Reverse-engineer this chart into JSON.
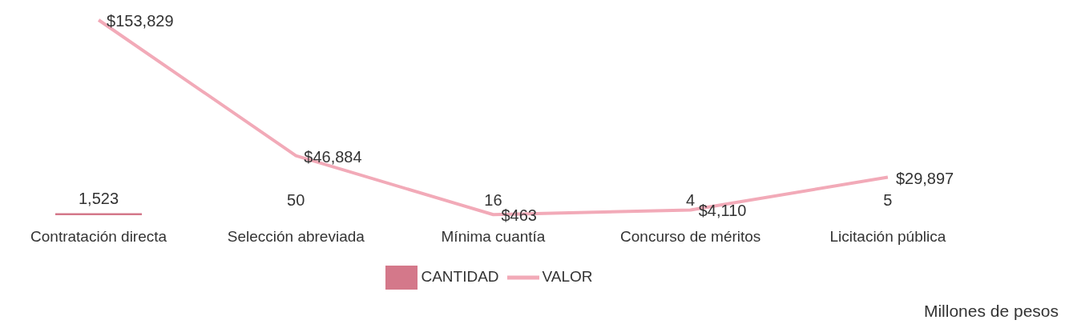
{
  "chart_data": {
    "type": "bar",
    "categories": [
      "Contratación directa",
      "Selección abreviada",
      "Mínima cuantía",
      "Concurso de méritos",
      "Licitación pública"
    ],
    "series": [
      {
        "name": "CANTIDAD",
        "color": "#d4788a",
        "values": [
          1523,
          50,
          16,
          4,
          5
        ],
        "value_labels": [
          "1,523",
          "50",
          "16",
          "4",
          "5"
        ]
      },
      {
        "name": "VALOR",
        "type": "line",
        "color": "#f2aab8",
        "values": [
          153829,
          46884,
          463,
          4110,
          29897
        ],
        "value_labels": [
          "$153,829",
          "$46,884",
          "$463",
          "$4,110",
          "$29,897"
        ]
      }
    ],
    "tick_labels": "x",
    "legend": "bottom",
    "marker": "none",
    "annotations": [
      "Millones de pesos"
    ]
  }
}
